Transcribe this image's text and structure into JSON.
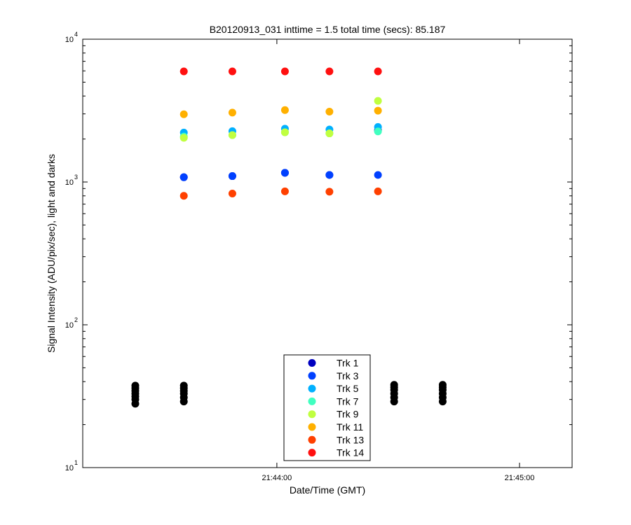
{
  "chart_data": {
    "type": "scatter",
    "title": "B20120913_031 inttime = 1.5 total time (secs): 85.187",
    "xlabel": "Date/Time (GMT)",
    "ylabel": "Signal Intensity (ADU/pix/sec), light and darks",
    "yscale": "log",
    "ylim": [
      10,
      10000
    ],
    "xlim": [
      "21:43:12",
      "21:45:13"
    ],
    "x_ticks": [
      "21:44:00",
      "21:45:00"
    ],
    "y_ticks": [
      {
        "value": 10,
        "base": "10",
        "exp": "1"
      },
      {
        "value": 100,
        "base": "10",
        "exp": "2"
      },
      {
        "value": 1000,
        "base": "10",
        "exp": "3"
      },
      {
        "value": 10000,
        "base": "10",
        "exp": "4"
      }
    ],
    "grid": false,
    "legend_position": "bottom-center",
    "light_times": [
      "21:43:37",
      "21:43:49",
      "21:44:02",
      "21:44:13",
      "21:44:25"
    ],
    "series": [
      {
        "name": "Trk 1",
        "color": "#0000c0",
        "values": [
          1080,
          1100,
          1160,
          1120,
          2300
        ]
      },
      {
        "name": "Trk 3",
        "color": "#0040ff",
        "values": [
          1080,
          1100,
          1160,
          1120,
          1120
        ]
      },
      {
        "name": "Trk 5",
        "color": "#00b0ff",
        "values": [
          2220,
          2270,
          2360,
          2330,
          2430
        ]
      },
      {
        "name": "Trk 7",
        "color": "#40ffc0",
        "values": [
          2080,
          2130,
          2230,
          2190,
          2260
        ]
      },
      {
        "name": "Trk 9",
        "color": "#c0ff40",
        "values": [
          2040,
          2130,
          2230,
          2190,
          3700
        ]
      },
      {
        "name": "Trk 11",
        "color": "#ffb000",
        "values": [
          2980,
          3060,
          3190,
          3110,
          3160
        ]
      },
      {
        "name": "Trk 13",
        "color": "#ff4000",
        "values": [
          800,
          830,
          860,
          855,
          860
        ]
      },
      {
        "name": "Trk 14",
        "color": "#ff1010",
        "values": [
          5950,
          5950,
          5950,
          5950,
          5950
        ]
      }
    ],
    "dark_times": [
      "21:43:25",
      "21:43:37",
      "21:44:29",
      "21:44:41"
    ],
    "dark_frames": [
      {
        "time": "21:43:25",
        "values": [
          28,
          30,
          31.5,
          33,
          34.5,
          36,
          37.5
        ]
      },
      {
        "time": "21:43:37",
        "values": [
          29,
          31,
          33,
          34.5,
          36,
          37.5
        ]
      },
      {
        "time": "21:44:29",
        "values": [
          29,
          31,
          33,
          35,
          36.5,
          38
        ]
      },
      {
        "time": "21:44:41",
        "values": [
          29,
          31,
          33,
          35,
          36.5,
          38
        ]
      }
    ],
    "dark_color": "#000000"
  }
}
